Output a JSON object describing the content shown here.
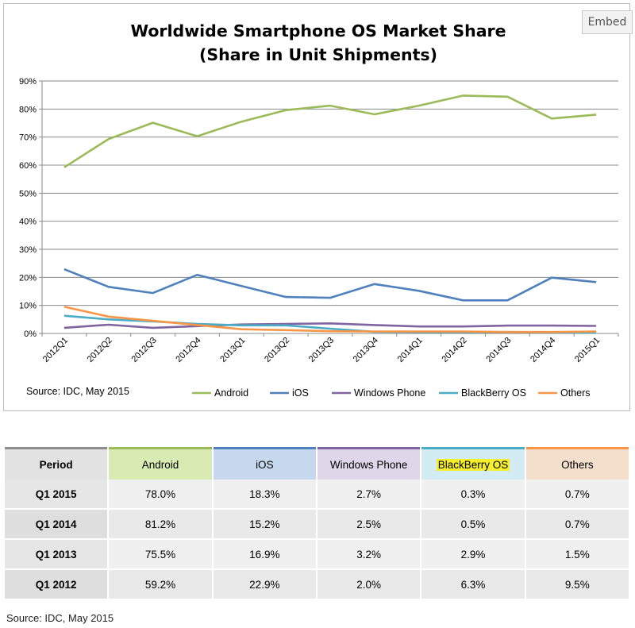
{
  "embed_label": "Embed",
  "colors": {
    "Android": "#9bbb59",
    "iOS": "#4f81bd",
    "Windows Phone": "#8064a2",
    "BlackBerry OS": "#4bacc6",
    "Others": "#f79646"
  },
  "chart_data": {
    "type": "line",
    "title": "Worldwide Smartphone OS Market Share",
    "subtitle": "(Share in Unit Shipments)",
    "source": "Source: IDC, May 2015",
    "x": [
      "2012Q1",
      "2012Q2",
      "2012Q3",
      "2012Q4",
      "2013Q1",
      "2013Q2",
      "2013Q3",
      "2013Q4",
      "2014Q1",
      "2014Q2",
      "2014Q3",
      "2014Q4",
      "2015Q1"
    ],
    "ylim": [
      0,
      90
    ],
    "yticks": [
      "0%",
      "10%",
      "20%",
      "30%",
      "40%",
      "50%",
      "60%",
      "70%",
      "80%",
      "90%"
    ],
    "grid": true,
    "legend_position": "bottom",
    "series": [
      {
        "name": "Android",
        "values": [
          59.2,
          69.3,
          75.1,
          70.3,
          75.5,
          79.6,
          81.2,
          78.1,
          81.2,
          84.8,
          84.4,
          76.6,
          78.0
        ]
      },
      {
        "name": "iOS",
        "values": [
          22.9,
          16.6,
          14.4,
          20.9,
          16.9,
          13.0,
          12.7,
          17.6,
          15.2,
          11.8,
          11.8,
          19.9,
          18.3
        ]
      },
      {
        "name": "Windows Phone",
        "values": [
          2.0,
          3.1,
          2.0,
          2.6,
          3.2,
          3.4,
          3.6,
          3.0,
          2.5,
          2.5,
          2.8,
          2.8,
          2.7
        ]
      },
      {
        "name": "BlackBerry OS",
        "values": [
          6.3,
          5.0,
          4.3,
          3.4,
          2.9,
          2.9,
          1.7,
          0.6,
          0.5,
          0.5,
          0.5,
          0.4,
          0.3
        ]
      },
      {
        "name": "Others",
        "values": [
          9.5,
          6.0,
          4.5,
          3.0,
          1.5,
          1.2,
          0.8,
          0.7,
          0.7,
          0.7,
          0.5,
          0.5,
          0.7
        ]
      }
    ]
  },
  "table": {
    "headers": [
      "Period",
      "Android",
      "iOS",
      "Windows Phone",
      "BlackBerry OS",
      "Others"
    ],
    "rows": [
      [
        "Q1 2015",
        "78.0%",
        "18.3%",
        "2.7%",
        "0.3%",
        "0.7%"
      ],
      [
        "Q1 2014",
        "81.2%",
        "15.2%",
        "2.5%",
        "0.5%",
        "0.7%"
      ],
      [
        "Q1 2013",
        "75.5%",
        "16.9%",
        "3.2%",
        "2.9%",
        "1.5%"
      ],
      [
        "Q1 2012",
        "59.2%",
        "22.9%",
        "2.0%",
        "6.3%",
        "9.5%"
      ]
    ],
    "source": "Source: IDC, May 2015"
  }
}
